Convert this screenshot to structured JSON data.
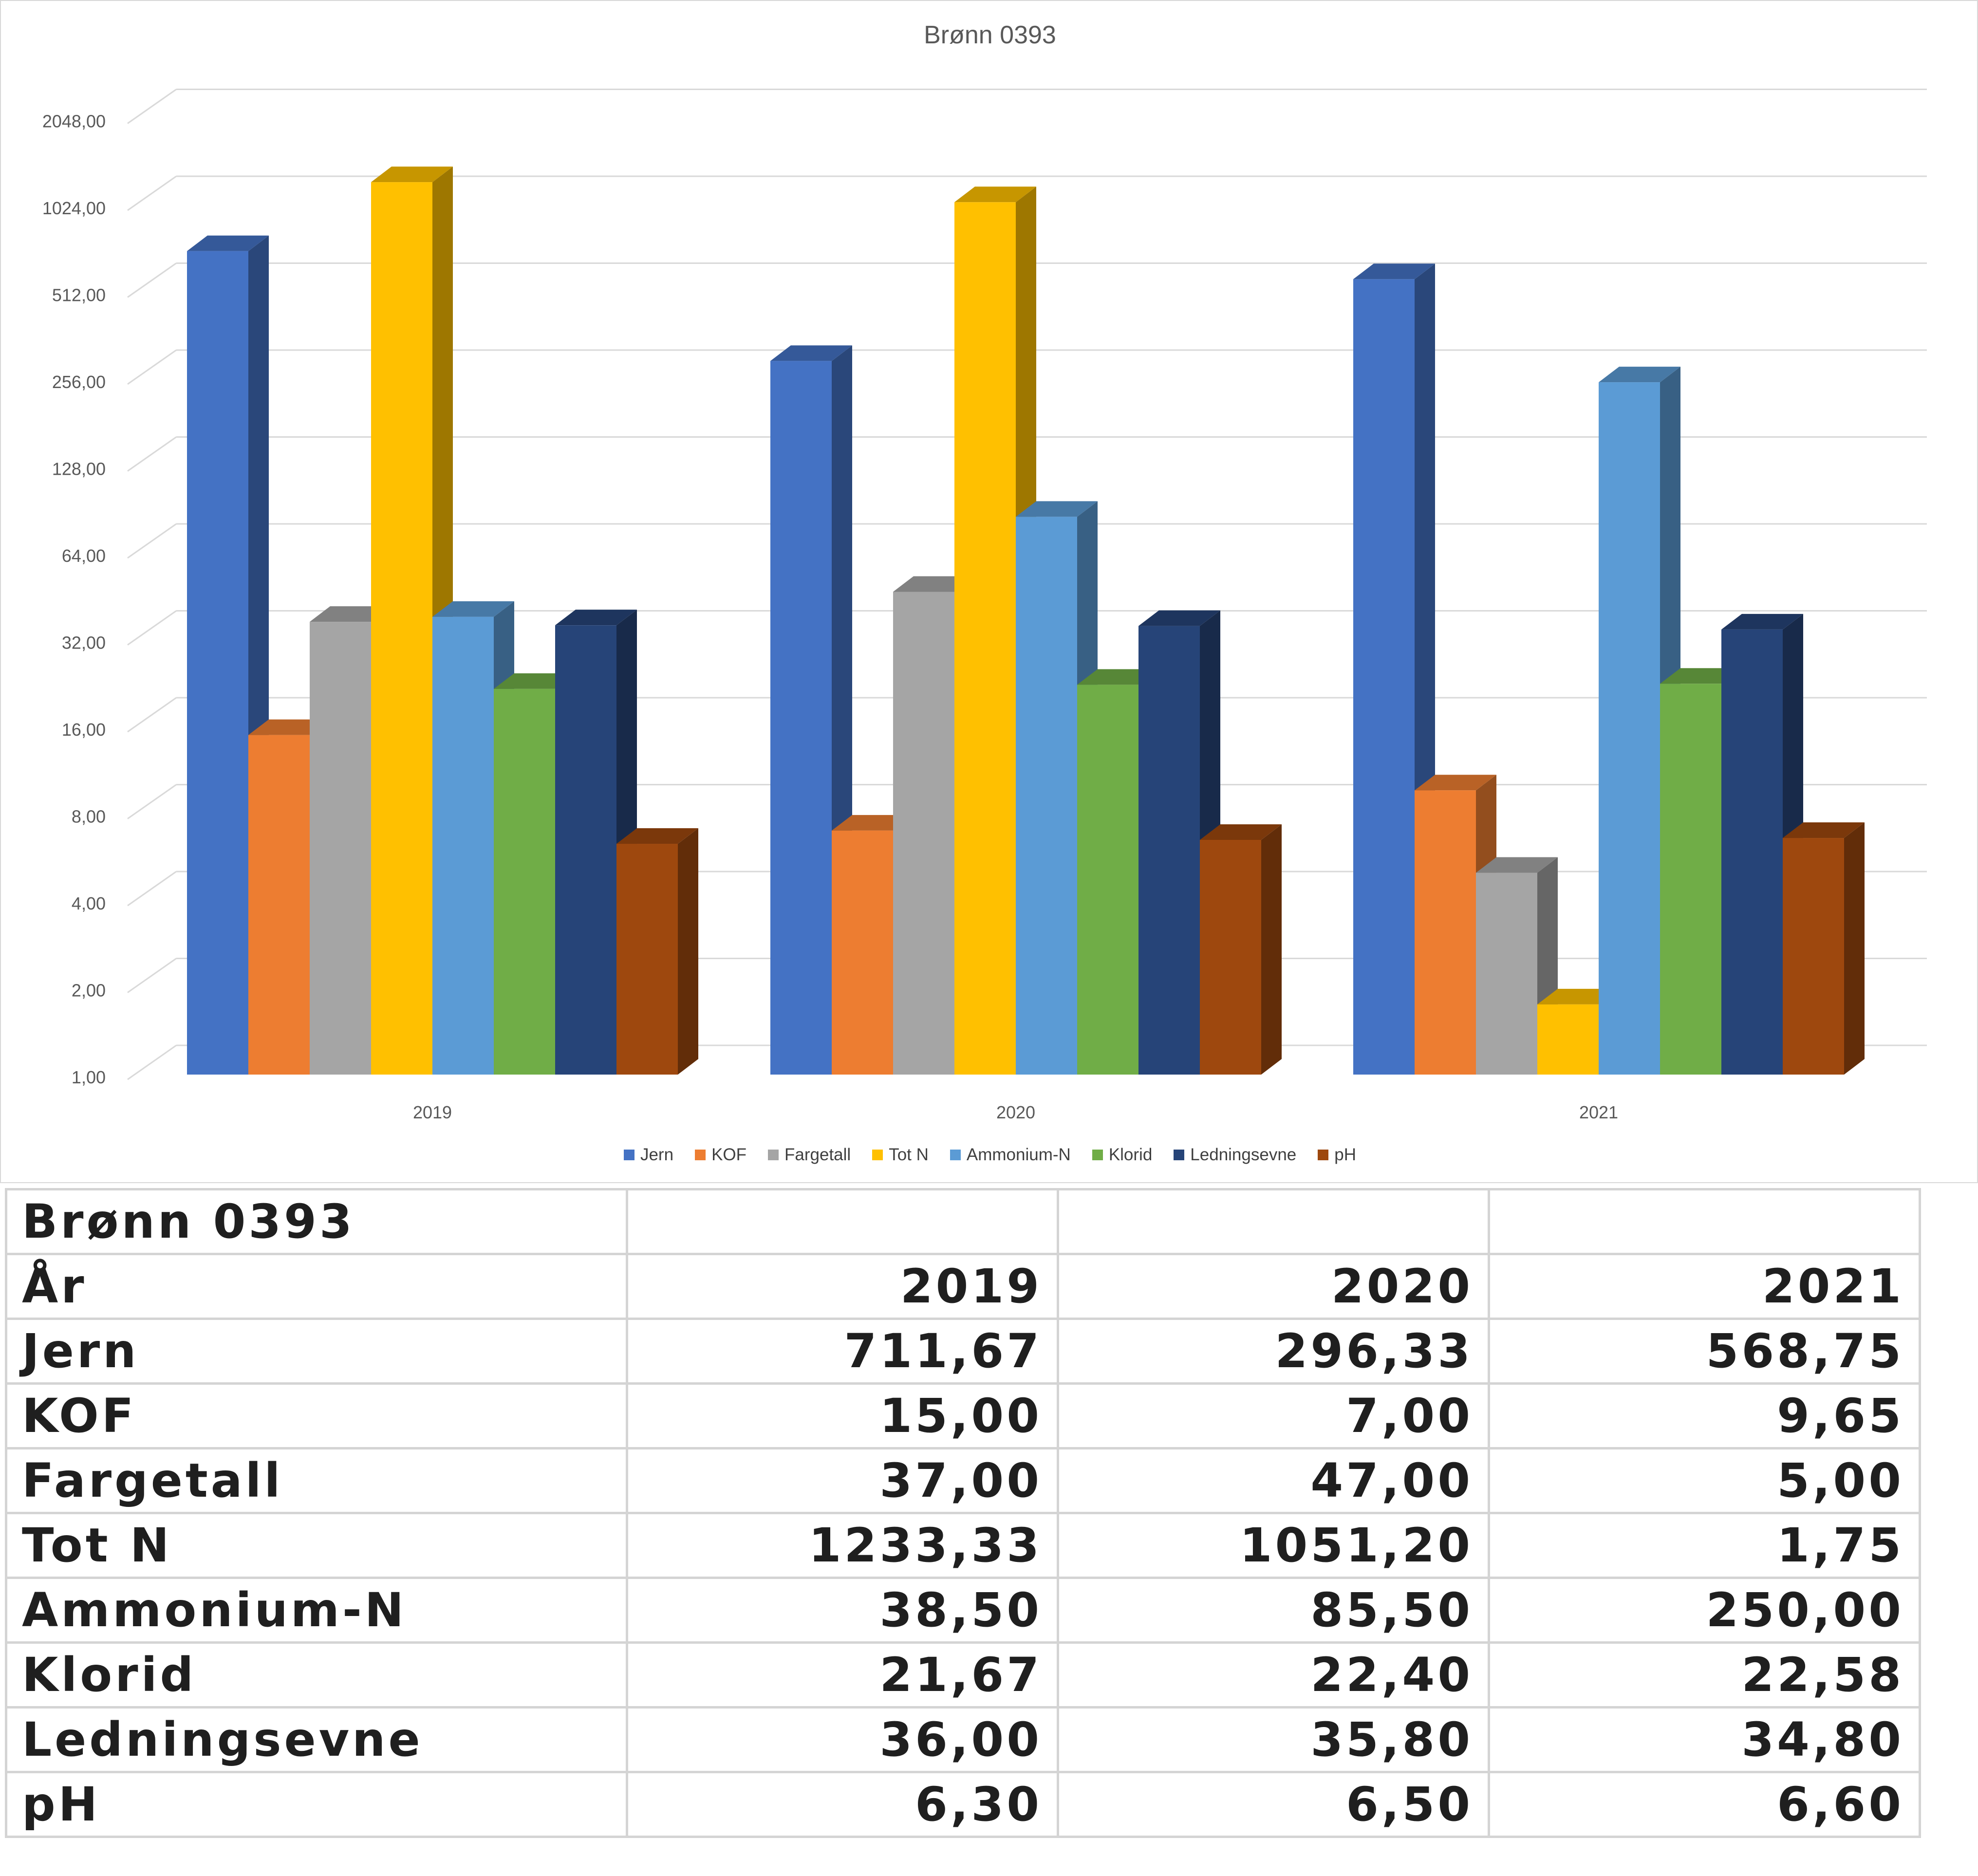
{
  "chart_data": {
    "type": "bar",
    "title": "Brønn 0393",
    "y_scale": "log2",
    "ylim": [
      1,
      2048
    ],
    "yticks": [
      "1,00",
      "2,00",
      "4,00",
      "8,00",
      "16,00",
      "32,00",
      "64,00",
      "128,00",
      "256,00",
      "512,00",
      "1024,00",
      "2048,00"
    ],
    "ytick_values": [
      1,
      2,
      4,
      8,
      16,
      32,
      64,
      128,
      256,
      512,
      1024,
      2048
    ],
    "categories": [
      "2019",
      "2020",
      "2021"
    ],
    "legend_position": "bottom",
    "grid": true,
    "series": [
      {
        "name": "Jern",
        "color": "#4472C4",
        "values": [
          711.67,
          296.33,
          568.75
        ]
      },
      {
        "name": "KOF",
        "color": "#ED7D31",
        "values": [
          15.0,
          7.0,
          9.65
        ]
      },
      {
        "name": "Fargetall",
        "color": "#A5A5A5",
        "values": [
          37.0,
          47.0,
          5.0
        ]
      },
      {
        "name": "Tot N",
        "color": "#FFC000",
        "values": [
          1233.33,
          1051.2,
          1.75
        ]
      },
      {
        "name": "Ammonium-N",
        "color": "#5B9BD5",
        "values": [
          38.5,
          85.5,
          250.0
        ]
      },
      {
        "name": "Klorid",
        "color": "#70AD47",
        "values": [
          21.67,
          22.4,
          22.58
        ]
      },
      {
        "name": "Ledningsevne",
        "color": "#264478",
        "values": [
          36.0,
          35.8,
          34.8
        ]
      },
      {
        "name": "pH",
        "color": "#9E480E",
        "values": [
          6.3,
          6.5,
          6.6
        ]
      }
    ]
  },
  "table": {
    "title": "Brønn 0393",
    "header": [
      "År",
      "2019",
      "2020",
      "2021"
    ],
    "rows": [
      [
        "Jern",
        "711,67",
        "296,33",
        "568,75"
      ],
      [
        "KOF",
        "15,00",
        "7,00",
        "9,65"
      ],
      [
        "Fargetall",
        "37,00",
        "47,00",
        "5,00"
      ],
      [
        "Tot N",
        "1233,33",
        "1051,20",
        "1,75"
      ],
      [
        "Ammonium-N",
        "38,50",
        "85,50",
        "250,00"
      ],
      [
        "Klorid",
        "21,67",
        "22,40",
        "22,58"
      ],
      [
        "Ledningsevne",
        "36,00",
        "35,80",
        "34,80"
      ],
      [
        "pH",
        "6,30",
        "6,50",
        "6,60"
      ]
    ]
  }
}
